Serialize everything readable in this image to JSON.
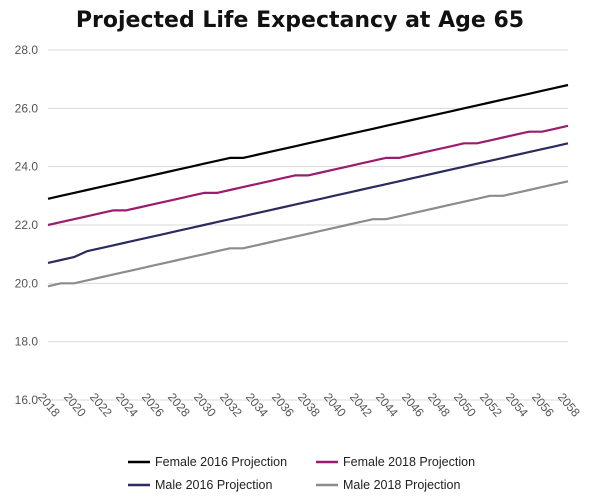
{
  "chart_data": {
    "type": "line",
    "title": "Projected Life Expectancy at Age 65",
    "xlabel": "",
    "ylabel": "",
    "ylim": [
      16.0,
      28.0
    ],
    "yticks": [
      "16.0",
      "18.0",
      "20.0",
      "22.0",
      "24.0",
      "26.0",
      "28.0"
    ],
    "x": [
      2018,
      2019,
      2020,
      2021,
      2022,
      2023,
      2024,
      2025,
      2026,
      2027,
      2028,
      2029,
      2030,
      2031,
      2032,
      2033,
      2034,
      2035,
      2036,
      2037,
      2038,
      2039,
      2040,
      2041,
      2042,
      2043,
      2044,
      2045,
      2046,
      2047,
      2048,
      2049,
      2050,
      2051,
      2052,
      2053,
      2054,
      2055,
      2056,
      2057,
      2058
    ],
    "xtick_labels": [
      "2018",
      "2020",
      "2022",
      "2024",
      "2026",
      "2028",
      "2030",
      "2032",
      "2034",
      "2036",
      "2038",
      "2040",
      "2042",
      "2044",
      "2046",
      "2048",
      "2050",
      "2052",
      "2054",
      "2056",
      "2058"
    ],
    "grid": "horizontal",
    "legend_position": "bottom",
    "series": [
      {
        "name": "Female 2016 Projection",
        "color": "#000000",
        "values": [
          22.9,
          23.0,
          23.1,
          23.2,
          23.3,
          23.4,
          23.5,
          23.6,
          23.7,
          23.8,
          23.9,
          24.0,
          24.1,
          24.2,
          24.3,
          24.3,
          24.4,
          24.5,
          24.6,
          24.7,
          24.8,
          24.9,
          25.0,
          25.1,
          25.2,
          25.3,
          25.4,
          25.5,
          25.6,
          25.7,
          25.8,
          25.9,
          26.0,
          26.1,
          26.2,
          26.3,
          26.4,
          26.5,
          26.6,
          26.7,
          26.8
        ]
      },
      {
        "name": "Female 2018 Projection",
        "color": "#9B1B6E",
        "values": [
          22.0,
          22.1,
          22.2,
          22.3,
          22.4,
          22.5,
          22.5,
          22.6,
          22.7,
          22.8,
          22.9,
          23.0,
          23.1,
          23.1,
          23.2,
          23.3,
          23.4,
          23.5,
          23.6,
          23.7,
          23.7,
          23.8,
          23.9,
          24.0,
          24.1,
          24.2,
          24.3,
          24.3,
          24.4,
          24.5,
          24.6,
          24.7,
          24.8,
          24.8,
          24.9,
          25.0,
          25.1,
          25.2,
          25.2,
          25.3,
          25.4
        ]
      },
      {
        "name": "Male 2016 Projection",
        "color": "#2B2B5E",
        "values": [
          20.7,
          20.8,
          20.9,
          21.1,
          21.2,
          21.3,
          21.4,
          21.5,
          21.6,
          21.7,
          21.8,
          21.9,
          22.0,
          22.1,
          22.2,
          22.3,
          22.4,
          22.5,
          22.6,
          22.7,
          22.8,
          22.9,
          23.0,
          23.1,
          23.2,
          23.3,
          23.4,
          23.5,
          23.6,
          23.7,
          23.8,
          23.9,
          24.0,
          24.1,
          24.2,
          24.3,
          24.4,
          24.5,
          24.6,
          24.7,
          24.8
        ]
      },
      {
        "name": "Male 2018 Projection",
        "color": "#8C8C8C",
        "values": [
          19.9,
          20.0,
          20.0,
          20.1,
          20.2,
          20.3,
          20.4,
          20.5,
          20.6,
          20.7,
          20.8,
          20.9,
          21.0,
          21.1,
          21.2,
          21.2,
          21.3,
          21.4,
          21.5,
          21.6,
          21.7,
          21.8,
          21.9,
          22.0,
          22.1,
          22.2,
          22.2,
          22.3,
          22.4,
          22.5,
          22.6,
          22.7,
          22.8,
          22.9,
          23.0,
          23.0,
          23.1,
          23.2,
          23.3,
          23.4,
          23.5
        ]
      }
    ]
  }
}
